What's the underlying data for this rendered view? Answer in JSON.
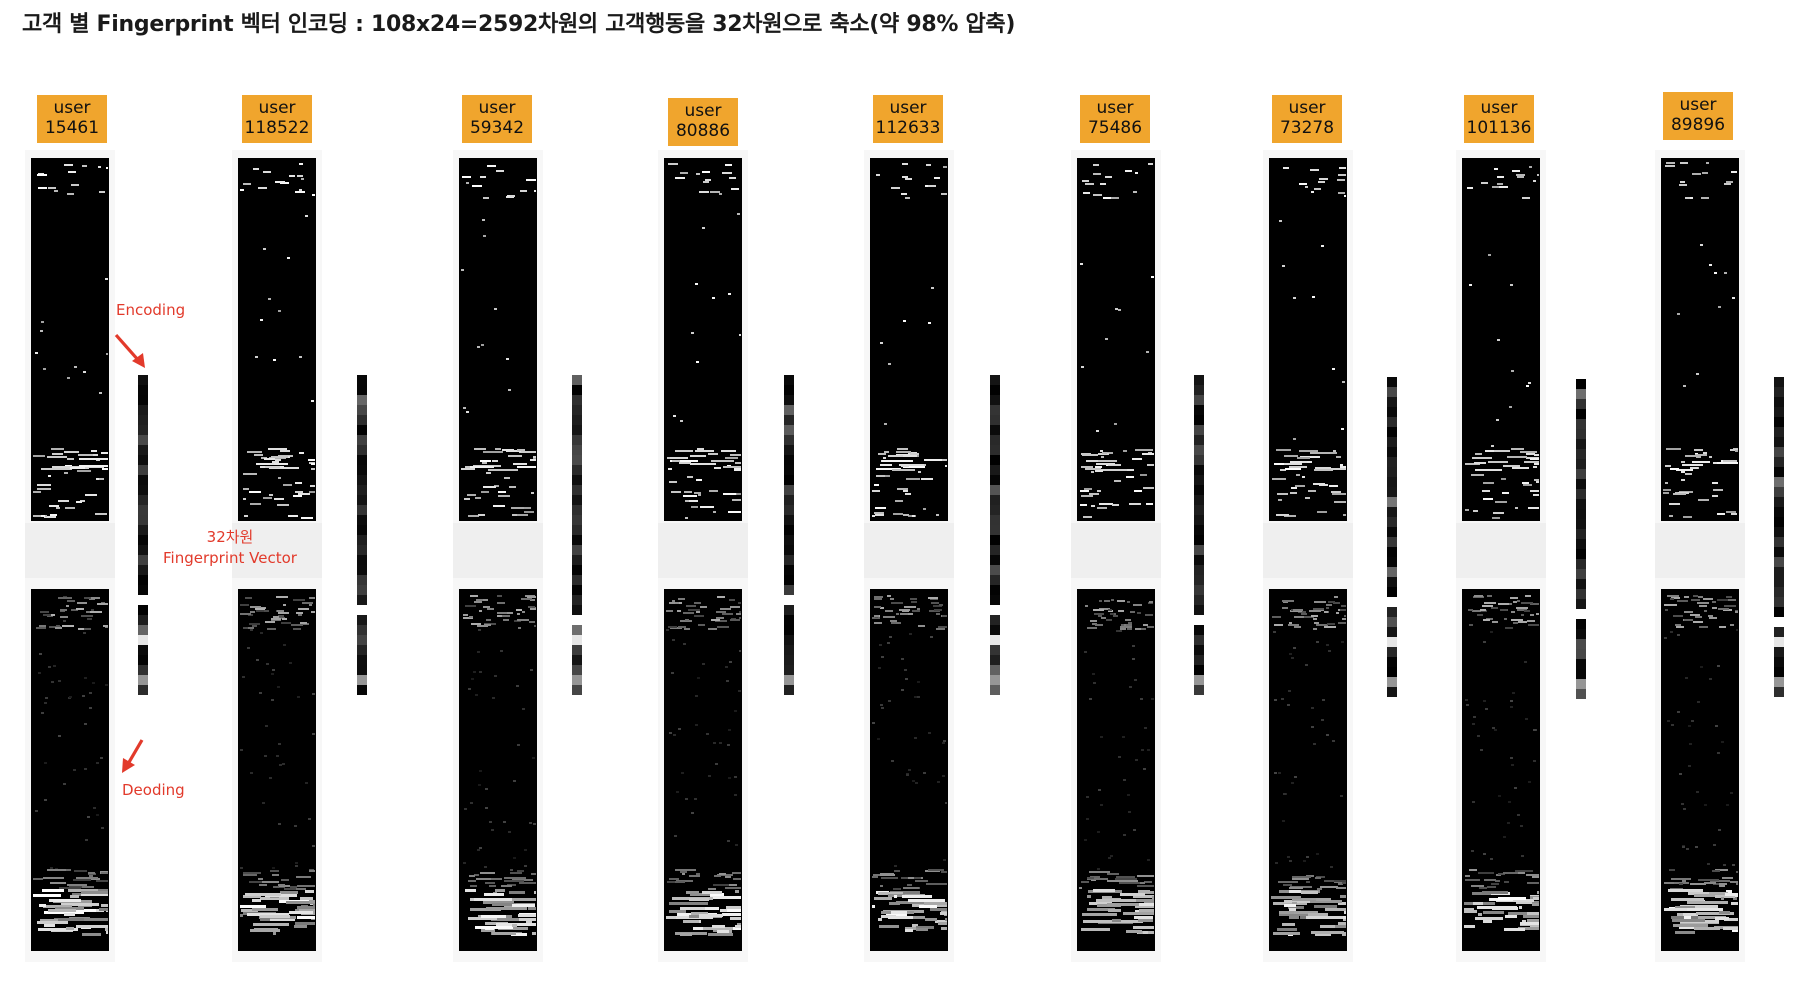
{
  "title": "고객 별 Fingerprint 벡터 인코딩 : 108x24=2592차원의 고객행동을 32차원으로 축소(약 98% 압축)",
  "annotations": {
    "encoding": "Encoding",
    "decoding": "Deoding",
    "vector_label_1": "32차원",
    "vector_label_2": "Fingerprint Vector"
  },
  "colors": {
    "badge": "#f0a52d",
    "annotation": "#e23a2b",
    "image_bg": "#000000"
  },
  "users": [
    {
      "label": "user",
      "id": "15461"
    },
    {
      "label": "user",
      "id": "118522"
    },
    {
      "label": "user",
      "id": "59342"
    },
    {
      "label": "user",
      "id": "80886"
    },
    {
      "label": "user",
      "id": "112633"
    },
    {
      "label": "user",
      "id": "75486"
    },
    {
      "label": "user",
      "id": "73278"
    },
    {
      "label": "user",
      "id": "101136"
    },
    {
      "label": "user",
      "id": "89896"
    }
  ]
}
